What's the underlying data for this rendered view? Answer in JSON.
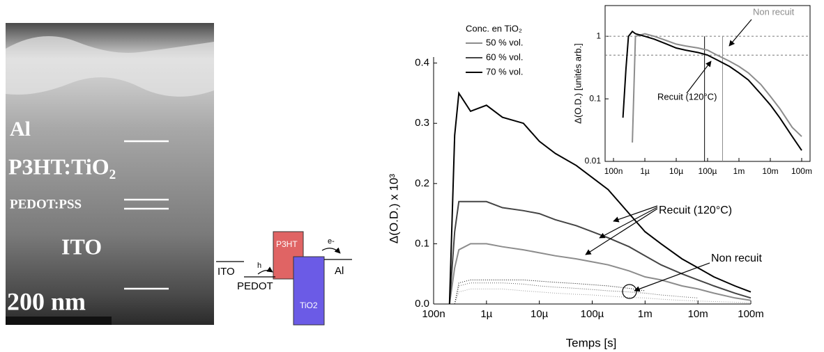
{
  "image": {
    "layers": [
      "Al",
      "P3HT:TiO₂",
      "PEDOT:PSS",
      "ITO"
    ],
    "scale_bar": "200 nm",
    "band_diagram": {
      "labels": [
        "P3HT",
        "TiO2",
        "ITO",
        "PEDOT",
        "Al",
        "h",
        "e-"
      ]
    }
  },
  "chart_data": [
    {
      "type": "line",
      "xlabel": "Temps [s]",
      "ylabel": "Δ(O.D.) x 10³",
      "log_x": true,
      "legend_title": "Conc. en TiO₂",
      "x": [
        2e-07,
        2.5e-07,
        3e-07,
        5e-07,
        1e-06,
        2e-06,
        5e-06,
        1e-05,
        2e-05,
        5e-05,
        0.0001,
        0.0002,
        0.0005,
        0.001,
        0.002,
        0.005,
        0.01,
        0.02,
        0.05,
        0.1
      ],
      "series": [
        {
          "name": "50 % vol.",
          "color": "#8c8c8c",
          "values": [
            0,
            0.06,
            0.09,
            0.1,
            0.1,
            0.095,
            0.09,
            0.085,
            0.08,
            0.075,
            0.07,
            0.065,
            0.055,
            0.045,
            0.04,
            0.03,
            0.025,
            0.018,
            0.01,
            0.006
          ]
        },
        {
          "name": "60 % vol.",
          "color": "#444444",
          "values": [
            0,
            0.12,
            0.17,
            0.17,
            0.17,
            0.16,
            0.155,
            0.15,
            0.14,
            0.13,
            0.12,
            0.11,
            0.095,
            0.08,
            0.065,
            0.05,
            0.04,
            0.03,
            0.018,
            0.01
          ]
        },
        {
          "name": "70 % vol.",
          "color": "#000000",
          "values": [
            0,
            0.28,
            0.35,
            0.32,
            0.33,
            0.31,
            0.3,
            0.27,
            0.25,
            0.23,
            0.21,
            0.19,
            0.15,
            0.12,
            0.1,
            0.075,
            0.06,
            0.045,
            0.03,
            0.02
          ]
        },
        {
          "color": "#9a9a9a",
          "style": "dotted",
          "values": [
            null,
            0,
            0.02,
            0.025,
            0.025,
            0.025,
            0.022,
            0.02,
            0.018,
            0.016,
            0.015,
            0.013,
            0.011,
            0.01,
            0.008,
            0.006,
            0.005,
            0.004,
            0.003,
            0.002
          ]
        },
        {
          "color": "#555555",
          "style": "dotted",
          "values": [
            null,
            0,
            0.03,
            0.035,
            0.035,
            0.035,
            0.033,
            0.03,
            0.028,
            0.026,
            0.024,
            0.022,
            0.02,
            0.018,
            0.015,
            0.012,
            0.01,
            null,
            null,
            null
          ]
        },
        {
          "color": "#000000",
          "style": "dotted",
          "values": [
            null,
            0,
            0.035,
            0.04,
            0.04,
            0.04,
            0.04,
            0.038,
            0.036,
            0.034,
            0.032,
            0.03,
            0.026,
            0.022,
            null,
            null,
            null,
            null,
            null,
            null
          ]
        }
      ],
      "xlim": [
        1e-07,
        0.1
      ],
      "ylim": [
        0,
        0.41
      ],
      "xticks": [
        {
          "value": 1e-07,
          "label": "100n"
        },
        {
          "value": 1e-06,
          "label": "1µ"
        },
        {
          "value": 1e-05,
          "label": "10µ"
        },
        {
          "value": 0.0001,
          "label": "100µ"
        },
        {
          "value": 0.001,
          "label": "1m"
        },
        {
          "value": 0.01,
          "label": "10m"
        },
        {
          "value": 0.1,
          "label": "100m"
        }
      ],
      "yticks": [
        {
          "value": 0,
          "label": "0.0"
        },
        0.1,
        0.2,
        0.3,
        0.4
      ],
      "annotations": [
        "Recuit (120°C)",
        "Non recuit"
      ]
    },
    {
      "type": "line",
      "ylabel": "Δ(O.D.) [unités arb.]",
      "log_x": true,
      "log_y": true,
      "x": [
        2e-07,
        2.5e-07,
        3e-07,
        4e-07,
        5e-07,
        1e-06,
        2e-06,
        5e-06,
        1e-05,
        2e-05,
        5e-05,
        0.0001,
        0.0002,
        0.0005,
        0.001,
        0.002,
        0.005,
        0.01,
        0.02,
        0.05,
        0.1
      ],
      "series": [
        {
          "color": "#8c8c8c",
          "values": [
            null,
            null,
            null,
            0.02,
            1.0,
            1.1,
            1.0,
            0.85,
            0.75,
            0.7,
            0.65,
            0.6,
            0.5,
            0.4,
            0.33,
            0.26,
            0.17,
            0.11,
            0.07,
            0.035,
            0.025
          ]
        },
        {
          "color": "#000000",
          "values": [
            0.05,
            0.3,
            1.0,
            1.2,
            1.1,
            1.0,
            0.9,
            0.75,
            0.65,
            0.6,
            0.55,
            0.5,
            0.42,
            0.33,
            0.26,
            0.2,
            0.12,
            0.08,
            0.05,
            0.025,
            0.015
          ]
        }
      ],
      "hlines": [
        1,
        0.5
      ],
      "vlines": [
        {
          "value": 8e-05,
          "color": "#000000"
        },
        {
          "value": 0.0003,
          "color": "#8c8c8c"
        }
      ],
      "xlim": [
        5.4e-08,
        0.185
      ],
      "ylim": [
        0.01,
        3.1
      ],
      "xticks": [
        {
          "value": 1e-07,
          "label": "100n"
        },
        {
          "value": 1e-06,
          "label": "1µ"
        },
        {
          "value": 1e-05,
          "label": "10µ"
        },
        {
          "value": 0.0001,
          "label": "100µ"
        },
        {
          "value": 0.001,
          "label": "1m"
        },
        {
          "value": 0.01,
          "label": "10m"
        },
        {
          "value": 0.1,
          "label": "100m"
        }
      ],
      "yticks": [
        0.01,
        0.1,
        1
      ],
      "annotations": [
        "Non recuit",
        "Recuit (120°C)"
      ]
    }
  ]
}
